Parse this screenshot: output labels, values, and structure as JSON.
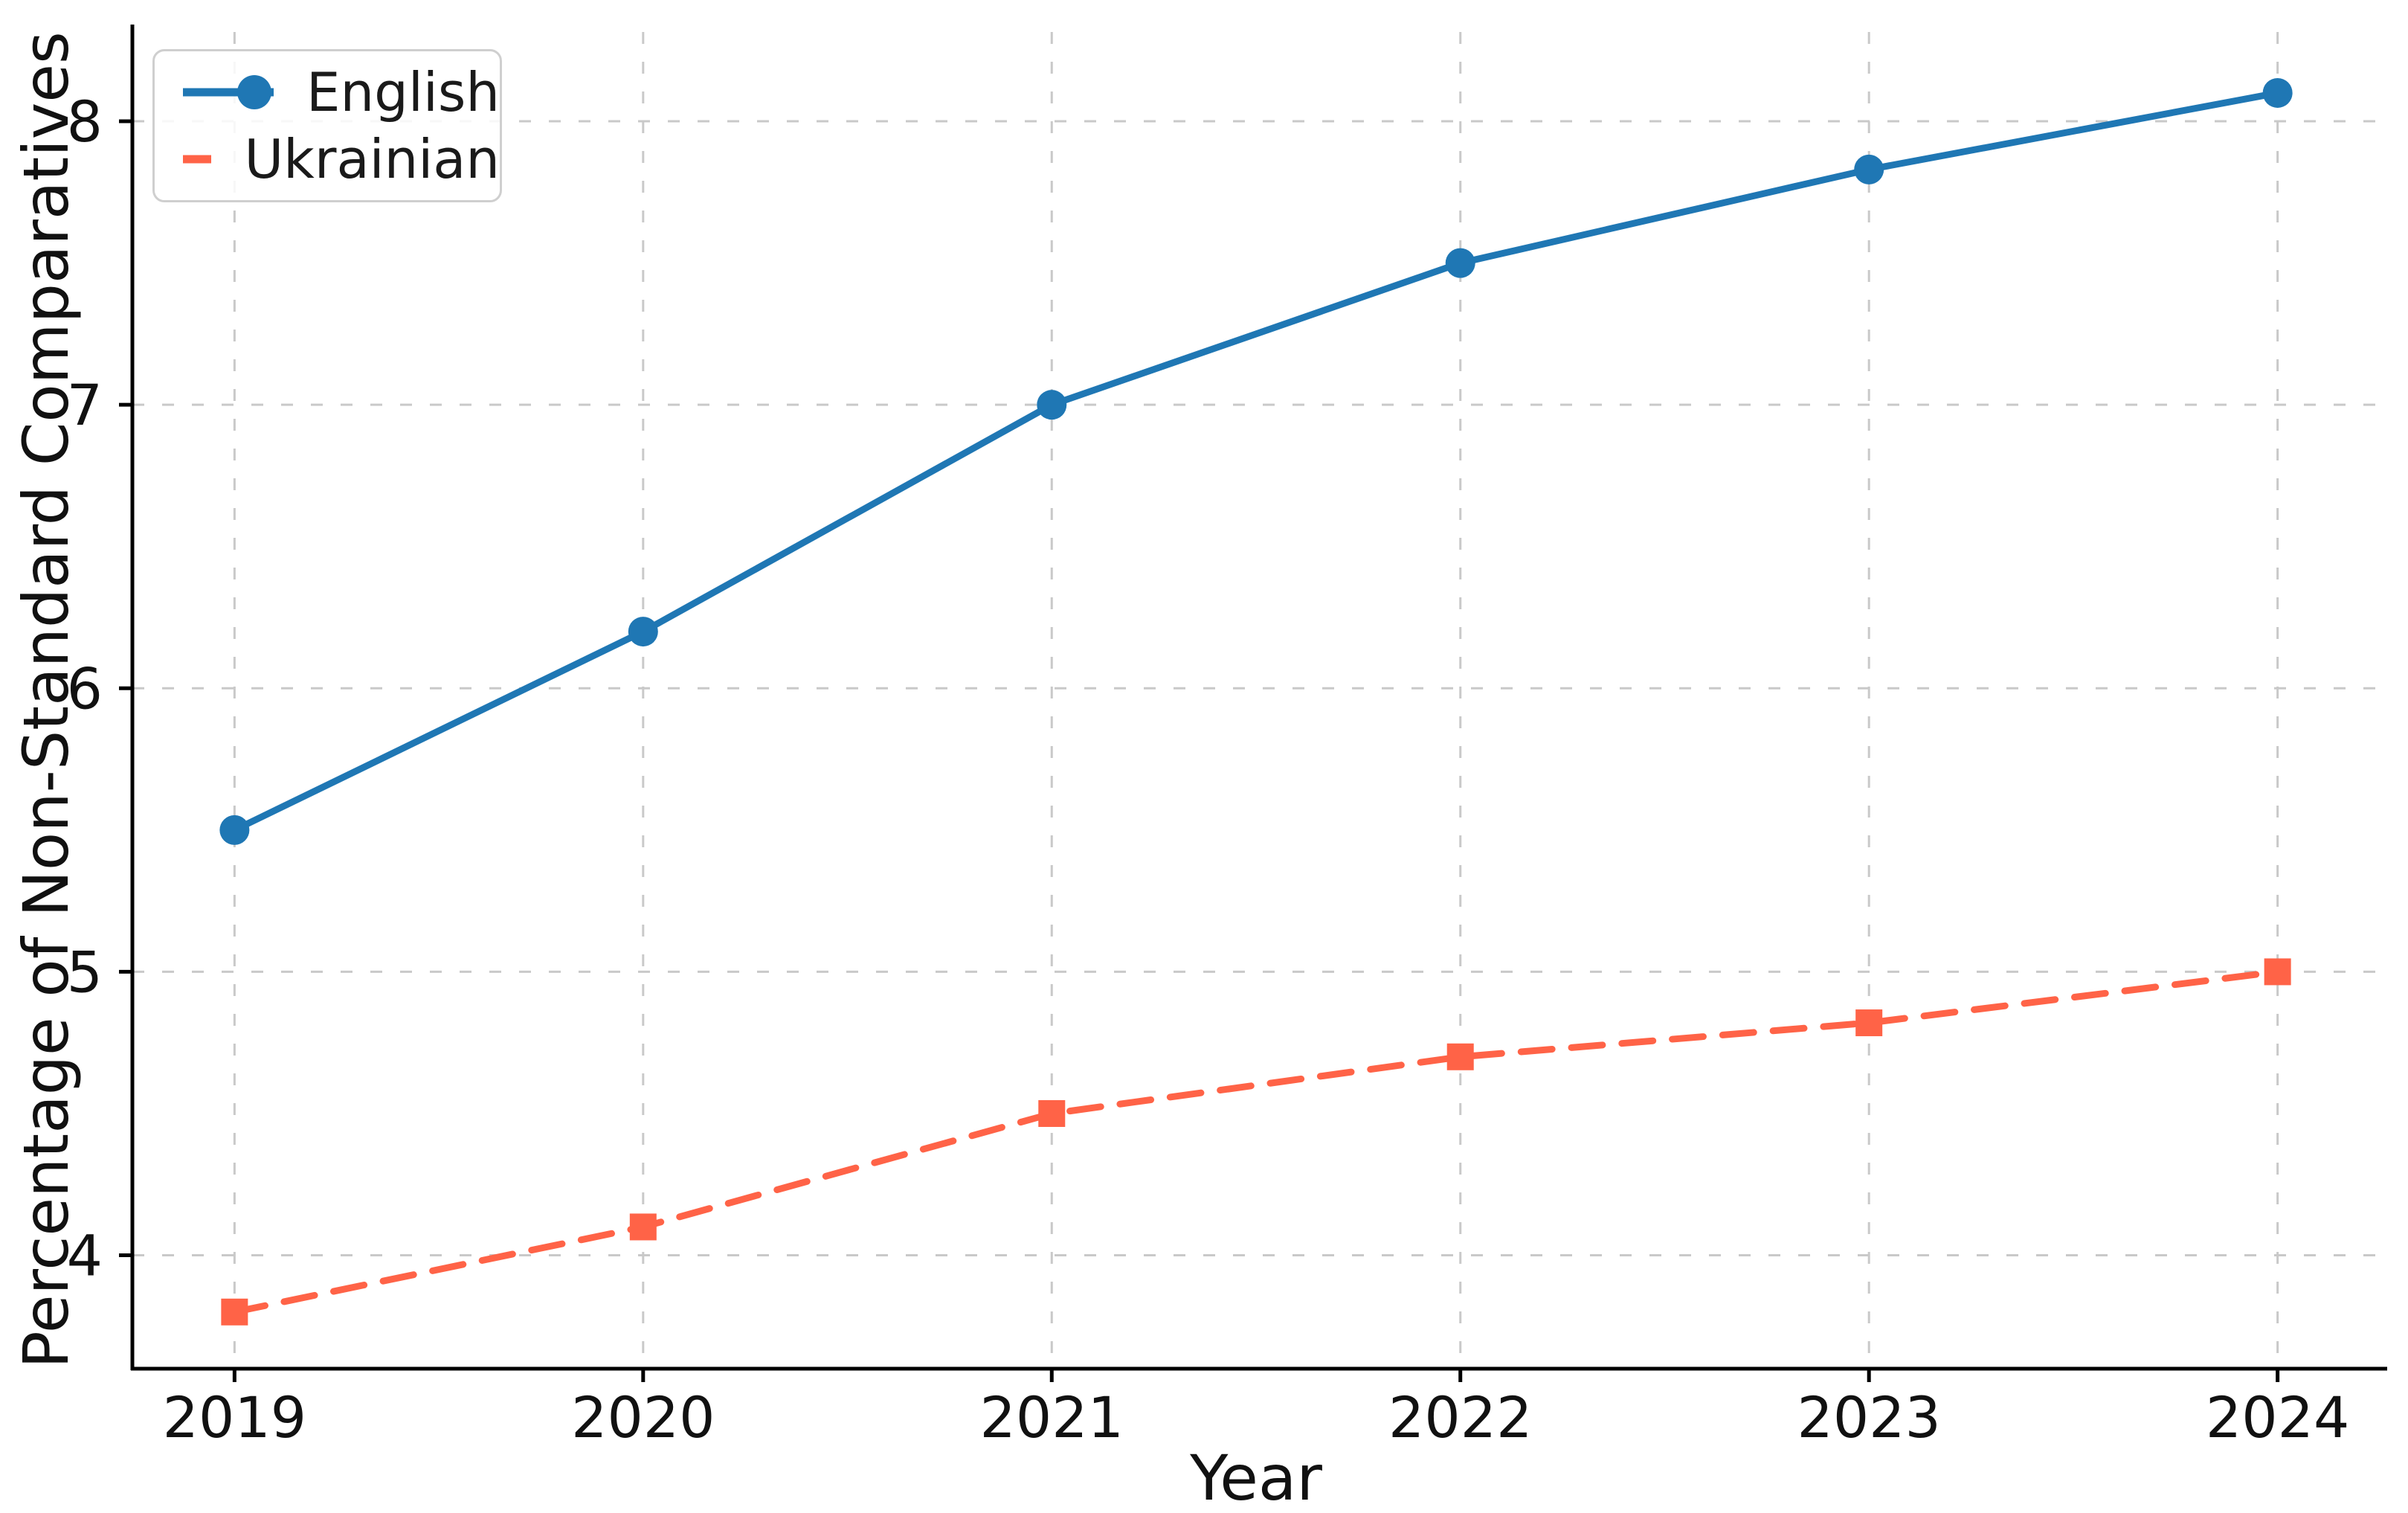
{
  "figure": {
    "background": "#ffffff",
    "text_color": "#111111",
    "spine_color": "#000000",
    "grid_color": "#c9c9c9"
  },
  "legend": {
    "position": "upper left",
    "border_color": "#cfcfcf",
    "entries": [
      {
        "label": "English",
        "color": "#1f77b4",
        "linestyle": "solid",
        "marker": "circle"
      },
      {
        "label": "Ukrainian",
        "color": "#ff6347",
        "linestyle": "dashed",
        "marker": "square"
      }
    ]
  },
  "chart_data": {
    "type": "line",
    "title": "",
    "xlabel": "Year",
    "ylabel": "Percentage of Non-Standard Comparatives",
    "x": [
      2019,
      2020,
      2021,
      2022,
      2023,
      2024
    ],
    "series": [
      {
        "name": "English",
        "values": [
          5.5,
          6.2,
          7.0,
          7.5,
          7.83,
          8.1
        ],
        "color": "#1f77b4",
        "linestyle": "solid",
        "marker": "circle"
      },
      {
        "name": "Ukrainian",
        "values": [
          3.8,
          4.1,
          4.5,
          4.7,
          4.82,
          5.0
        ],
        "color": "#ff6347",
        "linestyle": "dashed",
        "marker": "square"
      }
    ],
    "xticks": [
      2019,
      2020,
      2021,
      2022,
      2023,
      2024
    ],
    "yticks": [
      4,
      5,
      6,
      7,
      8
    ],
    "xlim": [
      2018.75,
      2024.25
    ],
    "ylim": [
      3.6,
      8.315
    ],
    "grid": true,
    "grid_style": "dashed",
    "legend_position": "upper left"
  }
}
